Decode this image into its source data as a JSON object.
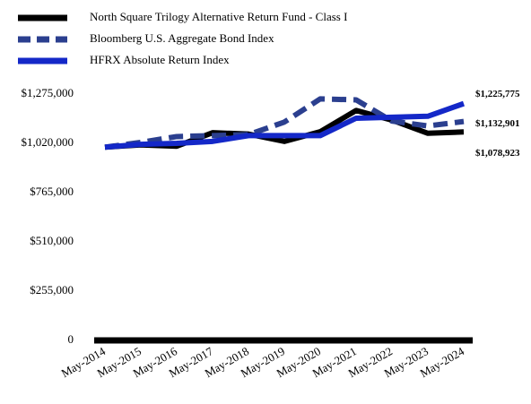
{
  "chart_data": {
    "type": "line",
    "categories": [
      "May-2014",
      "May-2015",
      "May-2016",
      "May-2017",
      "May-2018",
      "May-2019",
      "May-2020",
      "May-2021",
      "May-2022",
      "May-2023",
      "May-2024"
    ],
    "series": [
      {
        "name": "North Square Trilogy Alternative Return Fund - Class I",
        "color": "#000000",
        "dash": false,
        "values": [
          1000000,
          1012000,
          1005000,
          1075000,
          1068000,
          1030000,
          1080000,
          1190000,
          1140000,
          1072000,
          1078923
        ],
        "value_labels": [
          null,
          null,
          null,
          null,
          null,
          null,
          null,
          null,
          null,
          null,
          "$1,078,923"
        ]
      },
      {
        "name": "Bloomberg U.S. Aggregate Bond Index",
        "color": "#2b3f8f",
        "dash": true,
        "values": [
          1000000,
          1025000,
          1055000,
          1060000,
          1065000,
          1130000,
          1250000,
          1245000,
          1135000,
          1110000,
          1132901
        ],
        "value_labels": [
          null,
          null,
          null,
          null,
          null,
          null,
          null,
          null,
          null,
          null,
          "$1,132,901"
        ]
      },
      {
        "name": "HFRX Absolute Return Index",
        "color": "#1428c8",
        "dash": false,
        "values": [
          1000000,
          1015000,
          1020000,
          1030000,
          1060000,
          1060000,
          1060000,
          1150000,
          1155000,
          1160000,
          1225775
        ],
        "value_labels": [
          null,
          null,
          null,
          null,
          null,
          null,
          null,
          null,
          null,
          null,
          "$1,225,775"
        ]
      }
    ],
    "ylim": [
      0,
      1275000
    ],
    "yticks": [
      0,
      {
        "value": 255000,
        "label": "$255,000"
      },
      {
        "value": 510000,
        "label": "$510,000"
      },
      {
        "value": 765000,
        "label": "$765,000"
      },
      {
        "value": 1020000,
        "label": "$1,020,000"
      },
      {
        "value": 1275000,
        "label": "$1,275,000"
      }
    ],
    "grid": false
  }
}
